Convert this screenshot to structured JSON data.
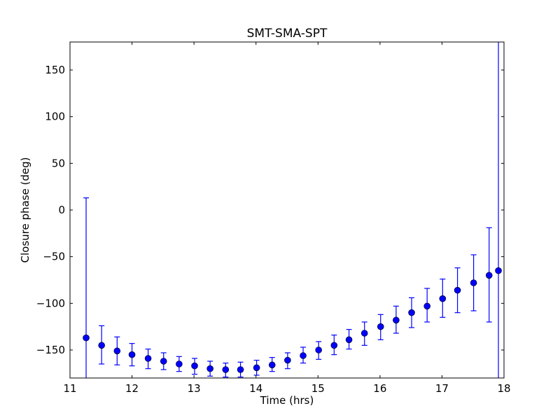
{
  "chart_data": {
    "type": "scatter",
    "title": "SMT-SMA-SPT",
    "xlabel": "Time (hrs)",
    "ylabel": "Closure phase (deg)",
    "xlim": [
      11,
      18
    ],
    "ylim": [
      -180,
      180
    ],
    "xticks": [
      11,
      12,
      13,
      14,
      15,
      16,
      17,
      18
    ],
    "yticks": [
      -150,
      -100,
      -50,
      0,
      50,
      100,
      150
    ],
    "xtick_labels": [
      "11",
      "12",
      "13",
      "14",
      "15",
      "16",
      "17",
      "18"
    ],
    "ytick_labels": [
      "−150",
      "−100",
      "−50",
      "0",
      "50",
      "100",
      "150"
    ],
    "grid": false,
    "color": "#0000ff",
    "series": [
      {
        "name": "SMT-SMA-SPT",
        "x": [
          11.26,
          11.51,
          11.76,
          12.0,
          12.26,
          12.51,
          12.76,
          13.01,
          13.26,
          13.51,
          13.75,
          14.01,
          14.26,
          14.51,
          14.76,
          15.01,
          15.26,
          15.5,
          15.75,
          16.01,
          16.26,
          16.51,
          16.76,
          17.01,
          17.25,
          17.51,
          17.76,
          17.91
        ],
        "y": [
          -137,
          -145,
          -151,
          -155,
          -159,
          -162,
          -165,
          -167,
          -170,
          -171,
          -171,
          -169,
          -166,
          -161,
          -156,
          -150,
          -145,
          -139,
          -132,
          -125,
          -118,
          -110,
          -103,
          -95,
          -86,
          -78,
          -70,
          -65
        ],
        "y_lower": [
          -287,
          -165,
          -166,
          -167,
          -170,
          -171,
          -173,
          -176,
          -178,
          -179,
          -179,
          -177,
          -173,
          -170,
          -164,
          -160,
          -155,
          -149,
          -145,
          -139,
          -132,
          -126,
          -120,
          -115,
          -110,
          -108,
          -120,
          -315
        ],
        "y_upper": [
          13,
          -124,
          -136,
          -143,
          -149,
          -153,
          -157,
          -159,
          -162,
          -164,
          -163,
          -161,
          -158,
          -153,
          -147,
          -141,
          -134,
          -128,
          -120,
          -112,
          -103,
          -94,
          -84,
          -74,
          -62,
          -48,
          -19,
          185
        ]
      }
    ]
  }
}
